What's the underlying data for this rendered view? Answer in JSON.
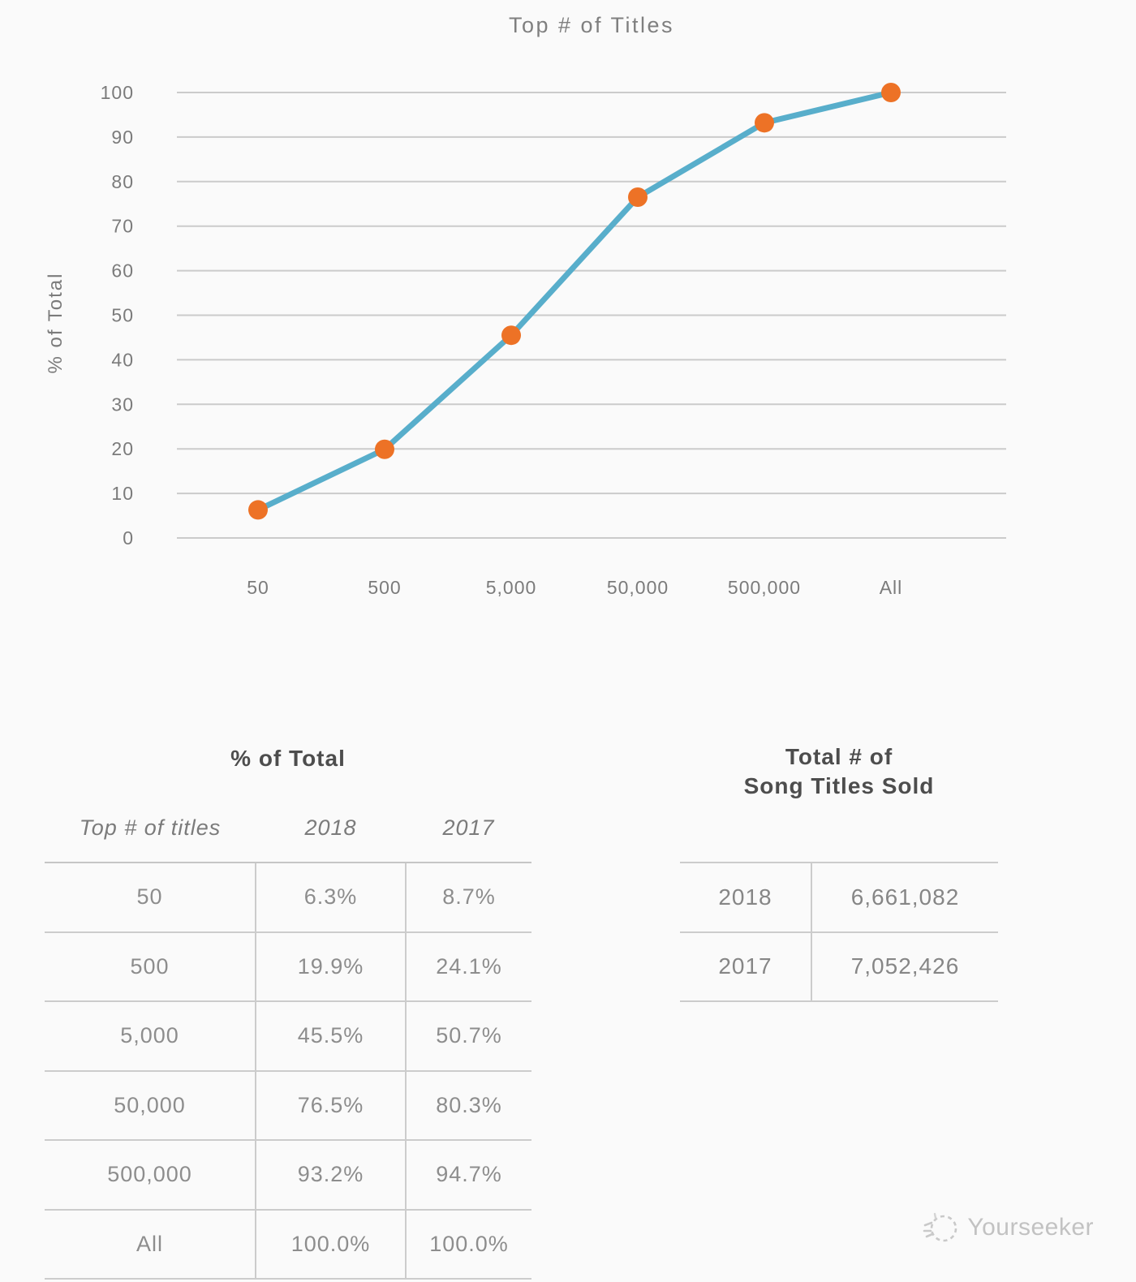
{
  "page": {
    "background": "#fafafa",
    "watermark": {
      "label": "Yourseeker"
    }
  },
  "chart_data": {
    "type": "line",
    "title": "Top # of Titles",
    "xlabel": "",
    "ylabel": "% of Total",
    "categories": [
      "50",
      "500",
      "5,000",
      "50,000",
      "500,000",
      "All"
    ],
    "series": [
      {
        "name": "2018",
        "values": [
          6.3,
          19.9,
          45.5,
          76.5,
          93.2,
          100.0
        ]
      }
    ],
    "ylim": [
      0,
      100
    ],
    "y_ticks": [
      "0",
      "10",
      "20",
      "30",
      "40",
      "50",
      "60",
      "70",
      "80",
      "90",
      "100"
    ],
    "grid": true,
    "legend": false,
    "line_color": "#58aecb",
    "marker_color": "#ed7226",
    "gridline_color": "#cbcbcb",
    "axis_text_color": "#7b7b7b"
  },
  "percent_table": {
    "title": "% of Total",
    "columns": [
      "Top # of titles",
      "2018",
      "2017"
    ],
    "rows": [
      [
        "50",
        "6.3%",
        "8.7%"
      ],
      [
        "500",
        "19.9%",
        "24.1%"
      ],
      [
        "5,000",
        "45.5%",
        "50.7%"
      ],
      [
        "50,000",
        "76.5%",
        "80.3%"
      ],
      [
        "500,000",
        "93.2%",
        "94.7%"
      ],
      [
        "All",
        "100.0%",
        "100.0%"
      ]
    ]
  },
  "totals_table": {
    "title_line1": "Total # of",
    "title_line2": "Song Titles Sold",
    "rows": [
      [
        "2018",
        "6,661,082"
      ],
      [
        "2017",
        "7,052,426"
      ]
    ]
  }
}
